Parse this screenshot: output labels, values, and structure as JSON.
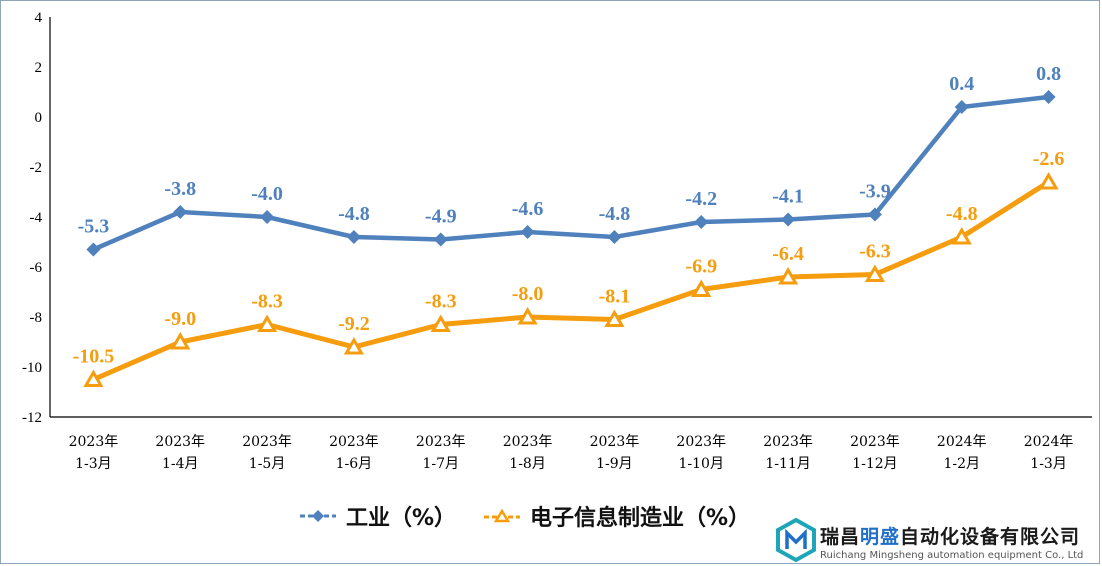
{
  "chart_data": {
    "type": "line",
    "categories": [
      [
        "2023年",
        "1-3月"
      ],
      [
        "2023年",
        "1-4月"
      ],
      [
        "2023年",
        "1-5月"
      ],
      [
        "2023年",
        "1-6月"
      ],
      [
        "2023年",
        "1-7月"
      ],
      [
        "2023年",
        "1-8月"
      ],
      [
        "2023年",
        "1-9月"
      ],
      [
        "2023年",
        "1-10月"
      ],
      [
        "2023年",
        "1-11月"
      ],
      [
        "2023年",
        "1-12月"
      ],
      [
        "2024年",
        "1-2月"
      ],
      [
        "2024年",
        "1-3月"
      ]
    ],
    "series": [
      {
        "name": "工业（%）",
        "color": "#4f81bd",
        "marker": "diamond",
        "values": [
          -5.3,
          -3.8,
          -4.0,
          -4.8,
          -4.9,
          -4.6,
          -4.8,
          -4.2,
          -4.1,
          -3.9,
          0.4,
          0.8
        ],
        "labels": [
          "-5.3",
          "-3.8",
          "-4.0",
          "-4.8",
          "-4.9",
          "-4.6",
          "-4.8",
          "-4.2",
          "-4.1",
          "-3.9",
          "0.4",
          "0.8"
        ]
      },
      {
        "name": "电子信息制造业（%）",
        "color": "#f59d0e",
        "marker": "triangle",
        "values": [
          -10.5,
          -9.0,
          -8.3,
          -9.2,
          -8.3,
          -8.0,
          -8.1,
          -6.9,
          -6.4,
          -6.3,
          -4.8,
          -2.6
        ],
        "labels": [
          "-10.5",
          "-9.0",
          "-8.3",
          "-9.2",
          "-8.3",
          "-8.0",
          "-8.1",
          "-6.9",
          "-6.4",
          "-6.3",
          "-4.8",
          "-2.6"
        ]
      }
    ],
    "y_ticks": [
      "4",
      "2",
      "0",
      "-2",
      "-4",
      "-6",
      "-8",
      "-10",
      "-12"
    ],
    "ylim": [
      -12,
      4
    ],
    "grid": false,
    "legend_position": "bottom"
  },
  "watermark": {
    "name_pre": "瑞昌",
    "name_accent": "明盛",
    "name_post": "自动化设备有限公司",
    "name_en": "Ruichang Mingsheng automation equipment Co., Ltd"
  }
}
